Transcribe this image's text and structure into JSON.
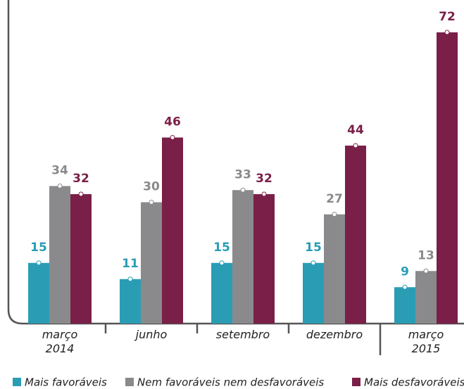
{
  "chart_data": {
    "type": "bar",
    "categories": [
      "março\n2014",
      "junho",
      "setembro",
      "dezembro",
      "março\n2015"
    ],
    "series": [
      {
        "name": "Mais favoráveis",
        "color": "#2a9db5",
        "values": [
          15,
          11,
          15,
          15,
          9
        ]
      },
      {
        "name": "Nem favoráveis nem desfavoráveis",
        "color": "#8a8a8c",
        "values": [
          34,
          30,
          33,
          27,
          13
        ]
      },
      {
        "name": "Mais desfavoráveis",
        "color": "#7a1f47",
        "values": [
          32,
          46,
          32,
          44,
          72
        ]
      }
    ],
    "ylim": [
      0,
      80
    ],
    "grid": false
  }
}
